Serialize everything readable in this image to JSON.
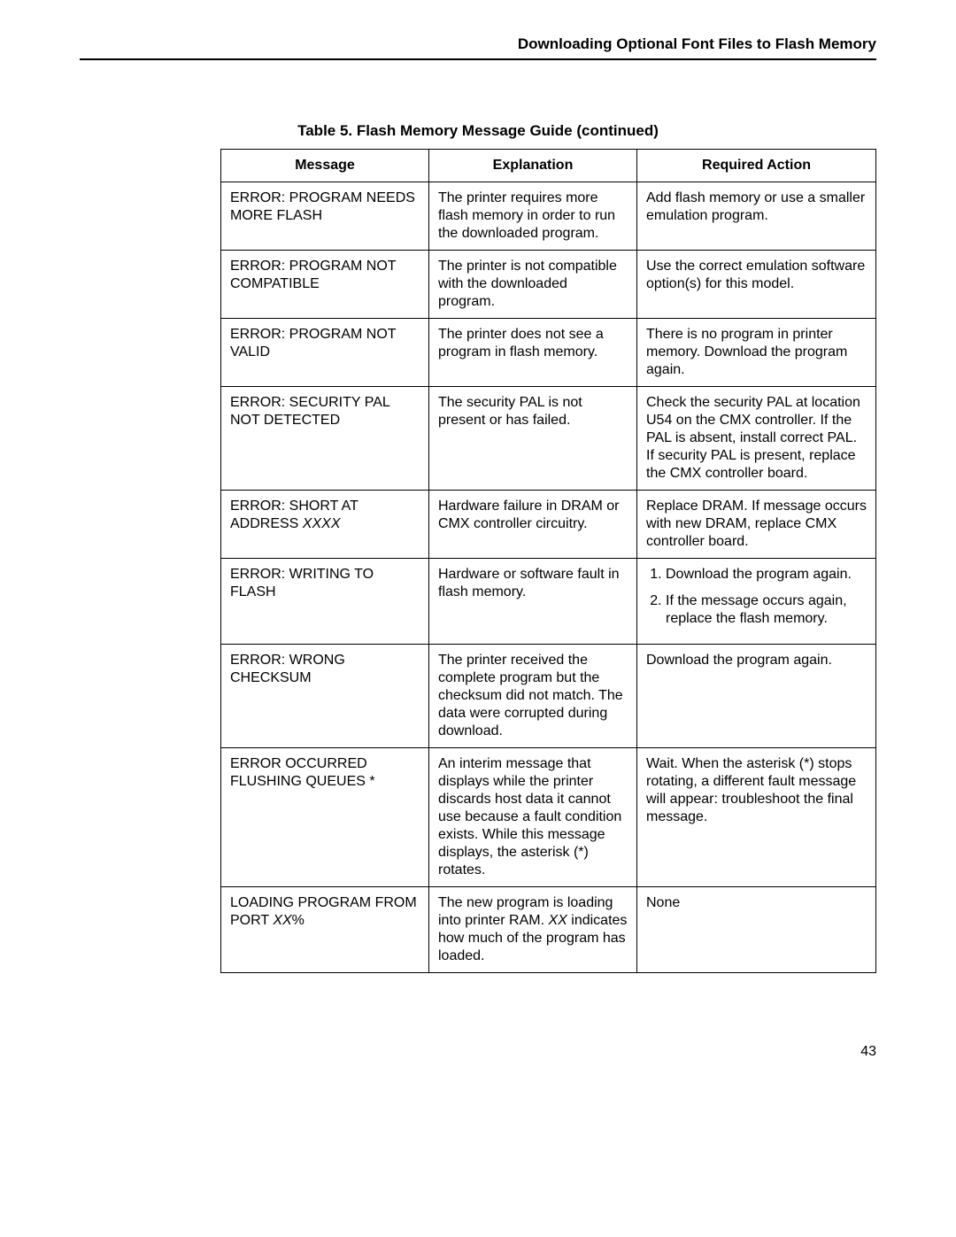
{
  "page": {
    "running_head": "Downloading Optional Font Files to Flash Memory",
    "table_caption": "Table 5. Flash Memory Message Guide (continued)",
    "page_number": "43",
    "columns": {
      "message": "Message",
      "explanation": "Explanation",
      "action": "Required Action"
    },
    "rows": [
      {
        "message": "ERROR: PROGRAM NEEDS MORE FLASH",
        "explanation": "The printer requires more flash memory in order to run the downloaded program.",
        "action": "Add flash memory or use a smaller emulation program."
      },
      {
        "message": "ERROR: PROGRAM NOT COMPATIBLE",
        "explanation": "The printer is not compatible with the downloaded program.",
        "action": "Use the correct emulation software option(s) for this model."
      },
      {
        "message": "ERROR: PROGRAM NOT VALID",
        "explanation": "The printer does not see a program in flash memory.",
        "action": "There is no program in printer memory. Download the program again."
      },
      {
        "message": "ERROR: SECURITY PAL NOT DETECTED",
        "explanation": "The security PAL is not present or has failed.",
        "action": "Check the security PAL at location U54 on the CMX controller. If the PAL is absent, install correct PAL. If security PAL is present, replace the CMX controller board."
      },
      {
        "message_pre": "ERROR: SHORT AT ADDRESS ",
        "message_italic": "XXXX",
        "explanation": "Hardware failure in DRAM or CMX controller circuitry.",
        "action": "Replace DRAM. If message occurs with new DRAM, replace CMX controller board."
      },
      {
        "message": "ERROR: WRITING TO FLASH",
        "explanation": "Hardware or software fault in flash memory.",
        "action_steps": [
          "Download the program again.",
          "If the message occurs again, replace the flash memory."
        ]
      },
      {
        "message": "ERROR: WRONG CHECKSUM",
        "explanation": "The printer received the complete program but the checksum did not match. The data were corrupted during download.",
        "action": "Download the program again."
      },
      {
        "message": "ERROR OCCURRED FLUSHING QUEUES *",
        "explanation": "An interim message that displays while the printer discards host data it cannot use because a fault condition exists. While this message displays, the asterisk (*) rotates.",
        "action": "Wait. When the asterisk (*) stops rotating, a different fault message will appear: troubleshoot the final message."
      },
      {
        "message_pre": "LOADING PROGRAM FROM PORT ",
        "message_italic": "XX",
        "message_post": "%",
        "explanation_pre": "The new program is loading into printer RAM. ",
        "explanation_italic": "XX",
        "explanation_post": " indicates how much of the program has loaded.",
        "action": "None"
      }
    ]
  }
}
